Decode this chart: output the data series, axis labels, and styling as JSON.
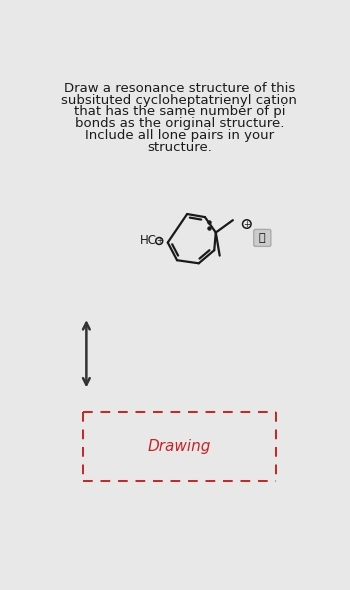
{
  "background_color": "#e8e8e8",
  "title_lines": [
    "Draw a resonance structure of this",
    "subsituted cycloheptatrienyl cation",
    "that has the same number of pi",
    "bonds as the original structure.",
    "Include all lone pairs in your",
    "structure."
  ],
  "title_fontsize": 9.5,
  "title_color": "#1a1a1a",
  "drawing_label": "Drawing",
  "drawing_label_color": "#cc2222",
  "drawing_box_color": "#cc2222",
  "arrow_color": "#333333",
  "molecule_color": "#1a1a1a",
  "lw": 1.6
}
